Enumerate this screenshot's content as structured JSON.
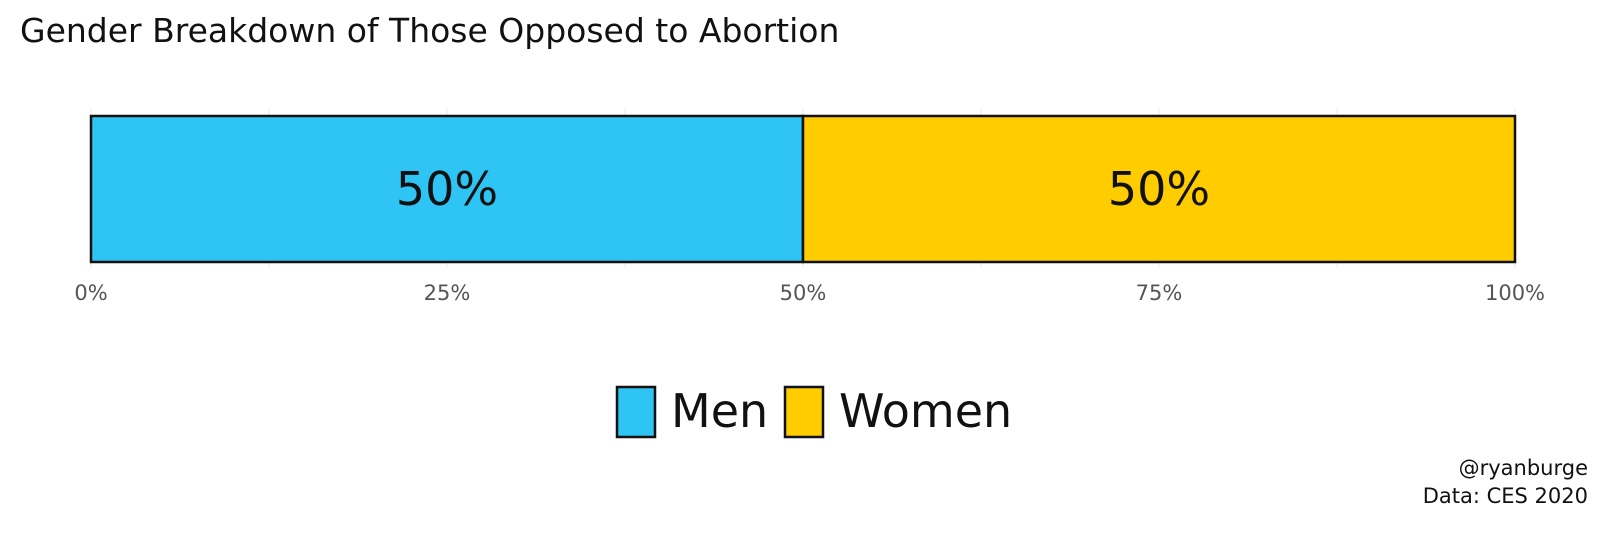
{
  "chart_data": {
    "type": "bar",
    "orientation": "horizontal-stacked",
    "title": "Gender Breakdown of Those Opposed to Abortion",
    "categories": [
      ""
    ],
    "series": [
      {
        "name": "Men",
        "values": [
          0.5
        ],
        "label": "50%",
        "color": "#2ec4f3"
      },
      {
        "name": "Women",
        "values": [
          0.5
        ],
        "label": "50%",
        "color": "#ffcc00"
      }
    ],
    "xlim": [
      0,
      1
    ],
    "x_ticks": [
      {
        "value": 0,
        "label": "0%"
      },
      {
        "value": 0.25,
        "label": "25%"
      },
      {
        "value": 0.5,
        "label": "50%"
      },
      {
        "value": 0.75,
        "label": "75%"
      },
      {
        "value": 1,
        "label": "100%"
      }
    ],
    "grid": true,
    "legend_position": "bottom",
    "caption": [
      "@ryanburge",
      "Data: CES 2020"
    ]
  }
}
